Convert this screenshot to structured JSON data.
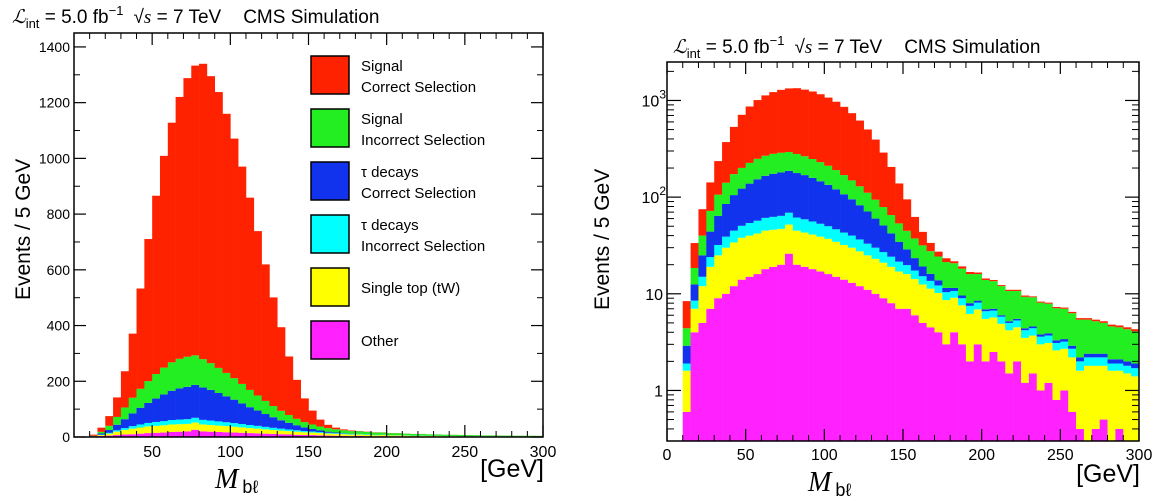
{
  "chart_data": [
    {
      "type": "bar",
      "stacked": true,
      "scale": "linear",
      "header": {
        "lumi_symbol": "ℒ",
        "lumi_sub": "int",
        "lumi_value": " = 5.0 fb",
        "lumi_exp": "−1",
        "sqrt_s": "s",
        "energy": " = 7 TeV",
        "experiment": "CMS Simulation"
      },
      "ylabel": "Events / 5 GeV",
      "xlabel_main": "M",
      "xlabel_sub": "bℓ",
      "xunit": "[GeV]",
      "xlim": [
        0,
        300
      ],
      "ylim": [
        0,
        1450
      ],
      "xticks": [
        "50",
        "100",
        "150",
        "200",
        "250",
        "300"
      ],
      "yticks": [
        "0",
        "200",
        "400",
        "600",
        "800",
        "1000",
        "1200",
        "1400"
      ],
      "legend": [
        {
          "line1": "Signal",
          "line2": "Correct Selection"
        },
        {
          "line1": "Signal",
          "line2": "Incorrect Selection"
        },
        {
          "line1": "τ decays",
          "line2": "Correct Selection"
        },
        {
          "line1": "τ decays",
          "line2": "Incorrect Selection"
        },
        {
          "line1": "Single top (tW)",
          "line2": ""
        },
        {
          "line1": "Other",
          "line2": ""
        }
      ]
    },
    {
      "type": "bar",
      "stacked": true,
      "scale": "log",
      "header": {
        "lumi_symbol": "ℒ",
        "lumi_sub": "int",
        "lumi_value": " = 5.0 fb",
        "lumi_exp": "−1",
        "sqrt_s": "s",
        "energy": " = 7 TeV",
        "experiment": "CMS Simulation"
      },
      "ylabel": "Events / 5 GeV",
      "xlabel_main": "M",
      "xlabel_sub": "bℓ",
      "xunit": "[GeV]",
      "xlim": [
        0,
        300
      ],
      "ylim": [
        0.3,
        2500
      ],
      "xticks": [
        "0",
        "50",
        "100",
        "150",
        "200",
        "250",
        "300"
      ],
      "yticks": [
        {
          "value": 1,
          "label": "1",
          "exp": ""
        },
        {
          "value": 10,
          "label": "10",
          "exp": ""
        },
        {
          "value": 100,
          "label": "10",
          "exp": "2"
        },
        {
          "value": 1000,
          "label": "10",
          "exp": "3"
        }
      ]
    }
  ],
  "series_colors": [
    "#ff2200",
    "#22ee22",
    "#1133ee",
    "#00ffff",
    "#ffff00",
    "#ff22ff"
  ],
  "series_names": [
    "Signal Correct Selection",
    "Signal Incorrect Selection",
    "τ decays Correct Selection",
    "τ decays Incorrect Selection",
    "Single top (tW)",
    "Other"
  ],
  "bins": {
    "x_low": [
      10,
      15,
      20,
      25,
      30,
      35,
      40,
      45,
      50,
      55,
      60,
      65,
      70,
      75,
      80,
      85,
      90,
      95,
      100,
      105,
      110,
      115,
      120,
      125,
      130,
      135,
      140,
      145,
      150,
      155,
      160,
      165,
      170,
      175,
      180,
      185,
      190,
      195,
      200,
      205,
      210,
      215,
      220,
      225,
      230,
      235,
      240,
      245,
      250,
      255,
      260,
      265,
      270,
      275,
      280,
      285,
      290,
      295
    ],
    "signal_correct": [
      4,
      15,
      35,
      70,
      130,
      230,
      360,
      510,
      640,
      760,
      860,
      940,
      1000,
      1040,
      1060,
      1030,
      990,
      930,
      860,
      780,
      690,
      590,
      490,
      390,
      300,
      210,
      140,
      85,
      50,
      25,
      12,
      6,
      3,
      2,
      1,
      1,
      0.8,
      0.6,
      0.5,
      0.4,
      0.3,
      0.3,
      0.3,
      0.3,
      0.2,
      0.2,
      0.2,
      0.2,
      0.2,
      0.2,
      0.2,
      0.2,
      0.2,
      0.2,
      0.2,
      0.2,
      0.2,
      0.2
    ],
    "signal_incorrect": [
      1.5,
      6,
      15,
      28,
      42,
      56,
      68,
      78,
      88,
      96,
      102,
      106,
      108,
      106,
      102,
      96,
      90,
      84,
      77,
      70,
      62,
      54,
      47,
      40,
      34,
      28,
      23,
      19,
      16,
      14,
      12.5,
      11.5,
      10.5,
      9.8,
      9.2,
      8.6,
      8.0,
      7.5,
      7.0,
      6.5,
      6.0,
      5.5,
      5.2,
      4.9,
      4.6,
      4.3,
      4.0,
      3.8,
      3.6,
      3.4,
      3.2,
      3.0,
      2.8,
      2.6,
      2.5,
      2.4,
      2.3,
      2.2
    ],
    "tau_correct": [
      1,
      4,
      10,
      20,
      32,
      46,
      60,
      72,
      84,
      96,
      105,
      112,
      116,
      118,
      116,
      110,
      102,
      93,
      84,
      74,
      64,
      55,
      46,
      38,
      30,
      24,
      18,
      13,
      9,
      6,
      4,
      2.5,
      1.6,
      1.1,
      0.8,
      0.6,
      0.5,
      0.4,
      0.3,
      0.3,
      0.2,
      0.2,
      0.2,
      0.2,
      0.2,
      0.2,
      0.2,
      0.2,
      0.2,
      0.2,
      0.2,
      0.2,
      0.2,
      0.2,
      0.2,
      0.2,
      0.2,
      0.2
    ],
    "tau_incorrect": [
      0.3,
      1.5,
      3,
      5,
      7,
      9,
      11,
      12.5,
      14,
      15,
      16,
      16.5,
      17,
      17,
      16.5,
      16,
      15,
      14,
      13,
      12,
      11,
      10,
      9,
      8,
      7,
      6,
      5.2,
      4.5,
      3.8,
      3.2,
      2.7,
      2.3,
      2.0,
      1.8,
      1.6,
      1.4,
      1.3,
      1.2,
      1.1,
      1.0,
      0.9,
      0.8,
      0.8,
      0.7,
      0.7,
      0.6,
      0.6,
      0.5,
      0.5,
      0.5,
      0.4,
      0.4,
      0.4,
      0.4,
      0.3,
      0.3,
      0.3,
      0.3
    ],
    "single_top": [
      1,
      3,
      7,
      12,
      16,
      20,
      22,
      24,
      25,
      26,
      27,
      27,
      27,
      26,
      25,
      24,
      23,
      22,
      21,
      19.5,
      18,
      17,
      15.5,
      14,
      13,
      12,
      11,
      10,
      9,
      8.2,
      7.5,
      6.8,
      6.2,
      5.6,
      5.1,
      4.6,
      4.2,
      3.9,
      3.5,
      3.2,
      2.9,
      2.7,
      2.5,
      2.3,
      2.2,
      2.0,
      1.9,
      1.8,
      1.7,
      1.6,
      1.2,
      1.5,
      1.4,
      1.3,
      1.3,
      1.2,
      1.2,
      1.1
    ],
    "other": [
      0.6,
      4,
      5,
      7,
      9,
      10,
      12,
      14,
      15,
      16,
      18,
      19,
      20,
      26,
      20,
      19,
      18,
      17,
      16,
      15,
      14,
      13,
      12,
      11,
      10,
      9,
      8,
      7,
      7,
      6,
      5,
      4.5,
      4,
      3,
      4,
      3,
      2,
      3,
      2,
      2.5,
      2,
      1.5,
      2,
      1.2,
      1.5,
      1,
      1.2,
      0.8,
      1,
      0.6,
      0.4,
      0.3,
      0.4,
      0.5,
      0.3,
      0.4,
      0.3,
      0.3
    ]
  }
}
